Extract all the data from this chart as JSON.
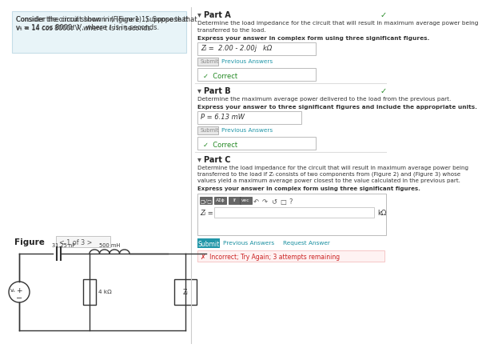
{
  "bg_color": "#ffffff",
  "left_panel_bg": "#e8f4f8",
  "left_panel_border": "#c5dde8",
  "divider_color": "#dddddd",
  "left_text_line1": "Consider the circuit shown in (Figure 1). Suppose that",
  "left_text_line2": "vₛ = 14 cos 8000t V, where t is in seconds.",
  "left_text_link": "(Figure 1)",
  "figure_label": "Figure",
  "figure_nav_text": "< 1 of 3 >",
  "part_a_title": "Part A",
  "part_a_desc1": "Determine the load impedance for the circuit that will result in maximum average power being",
  "part_a_desc2": "transferred to the load.",
  "part_a_instruction": "Express your answer in complex form using three significant figures.",
  "part_a_answer": "Zₗ =  2.00 - 2.00j   kΩ",
  "part_a_submit": "Submit",
  "part_a_prev": "Previous Answers",
  "part_a_correct": "✓  Correct",
  "part_b_title": "Part B",
  "part_b_desc": "Determine the maximum average power delivered to the load from the previous part.",
  "part_b_instruction": "Express your answer to three significant figures and include the appropriate units.",
  "part_b_answer": "P = 6.13 mW",
  "part_b_submit": "Submit",
  "part_b_prev": "Previous Answers",
  "part_b_correct": "✓  Correct",
  "part_c_title": "Part C",
  "part_c_desc1": "Determine the load impedance for the circuit that will result in maximum average power being",
  "part_c_desc2": "transferred to the load if Zₗ consists of two components from (Figure 2) and (Figure 3) whose",
  "part_c_desc3": "values yield a maximum average power closest to the value calculated in the previous part.",
  "part_c_instruction": "Express your answer in complex form using three significant figures.",
  "part_c_zl": "Zₗ =",
  "part_c_unit": "kΩ",
  "submit_btn_color": "#2196a8",
  "submit_btn_text_color": "#ffffff",
  "prev_ans_color": "#1a8fa0",
  "req_ans_color": "#1a8fa0",
  "incorrect_text": "✗  Incorrect; Try Again; 3 attempts remaining",
  "incorrect_bg": "#fef2f2",
  "incorrect_border": "#f5c6c6",
  "incorrect_color": "#cc2222",
  "check_color": "#228822",
  "cap_label": "31.25 nF",
  "ind_label": "500 mH",
  "res_label": "4 kΩ",
  "zl_label": "Zₗ",
  "gray_bg": "#e8e8e8",
  "gray_text": "#888888",
  "toolbar_dark": "#555555",
  "teal_color": "#2196a8"
}
